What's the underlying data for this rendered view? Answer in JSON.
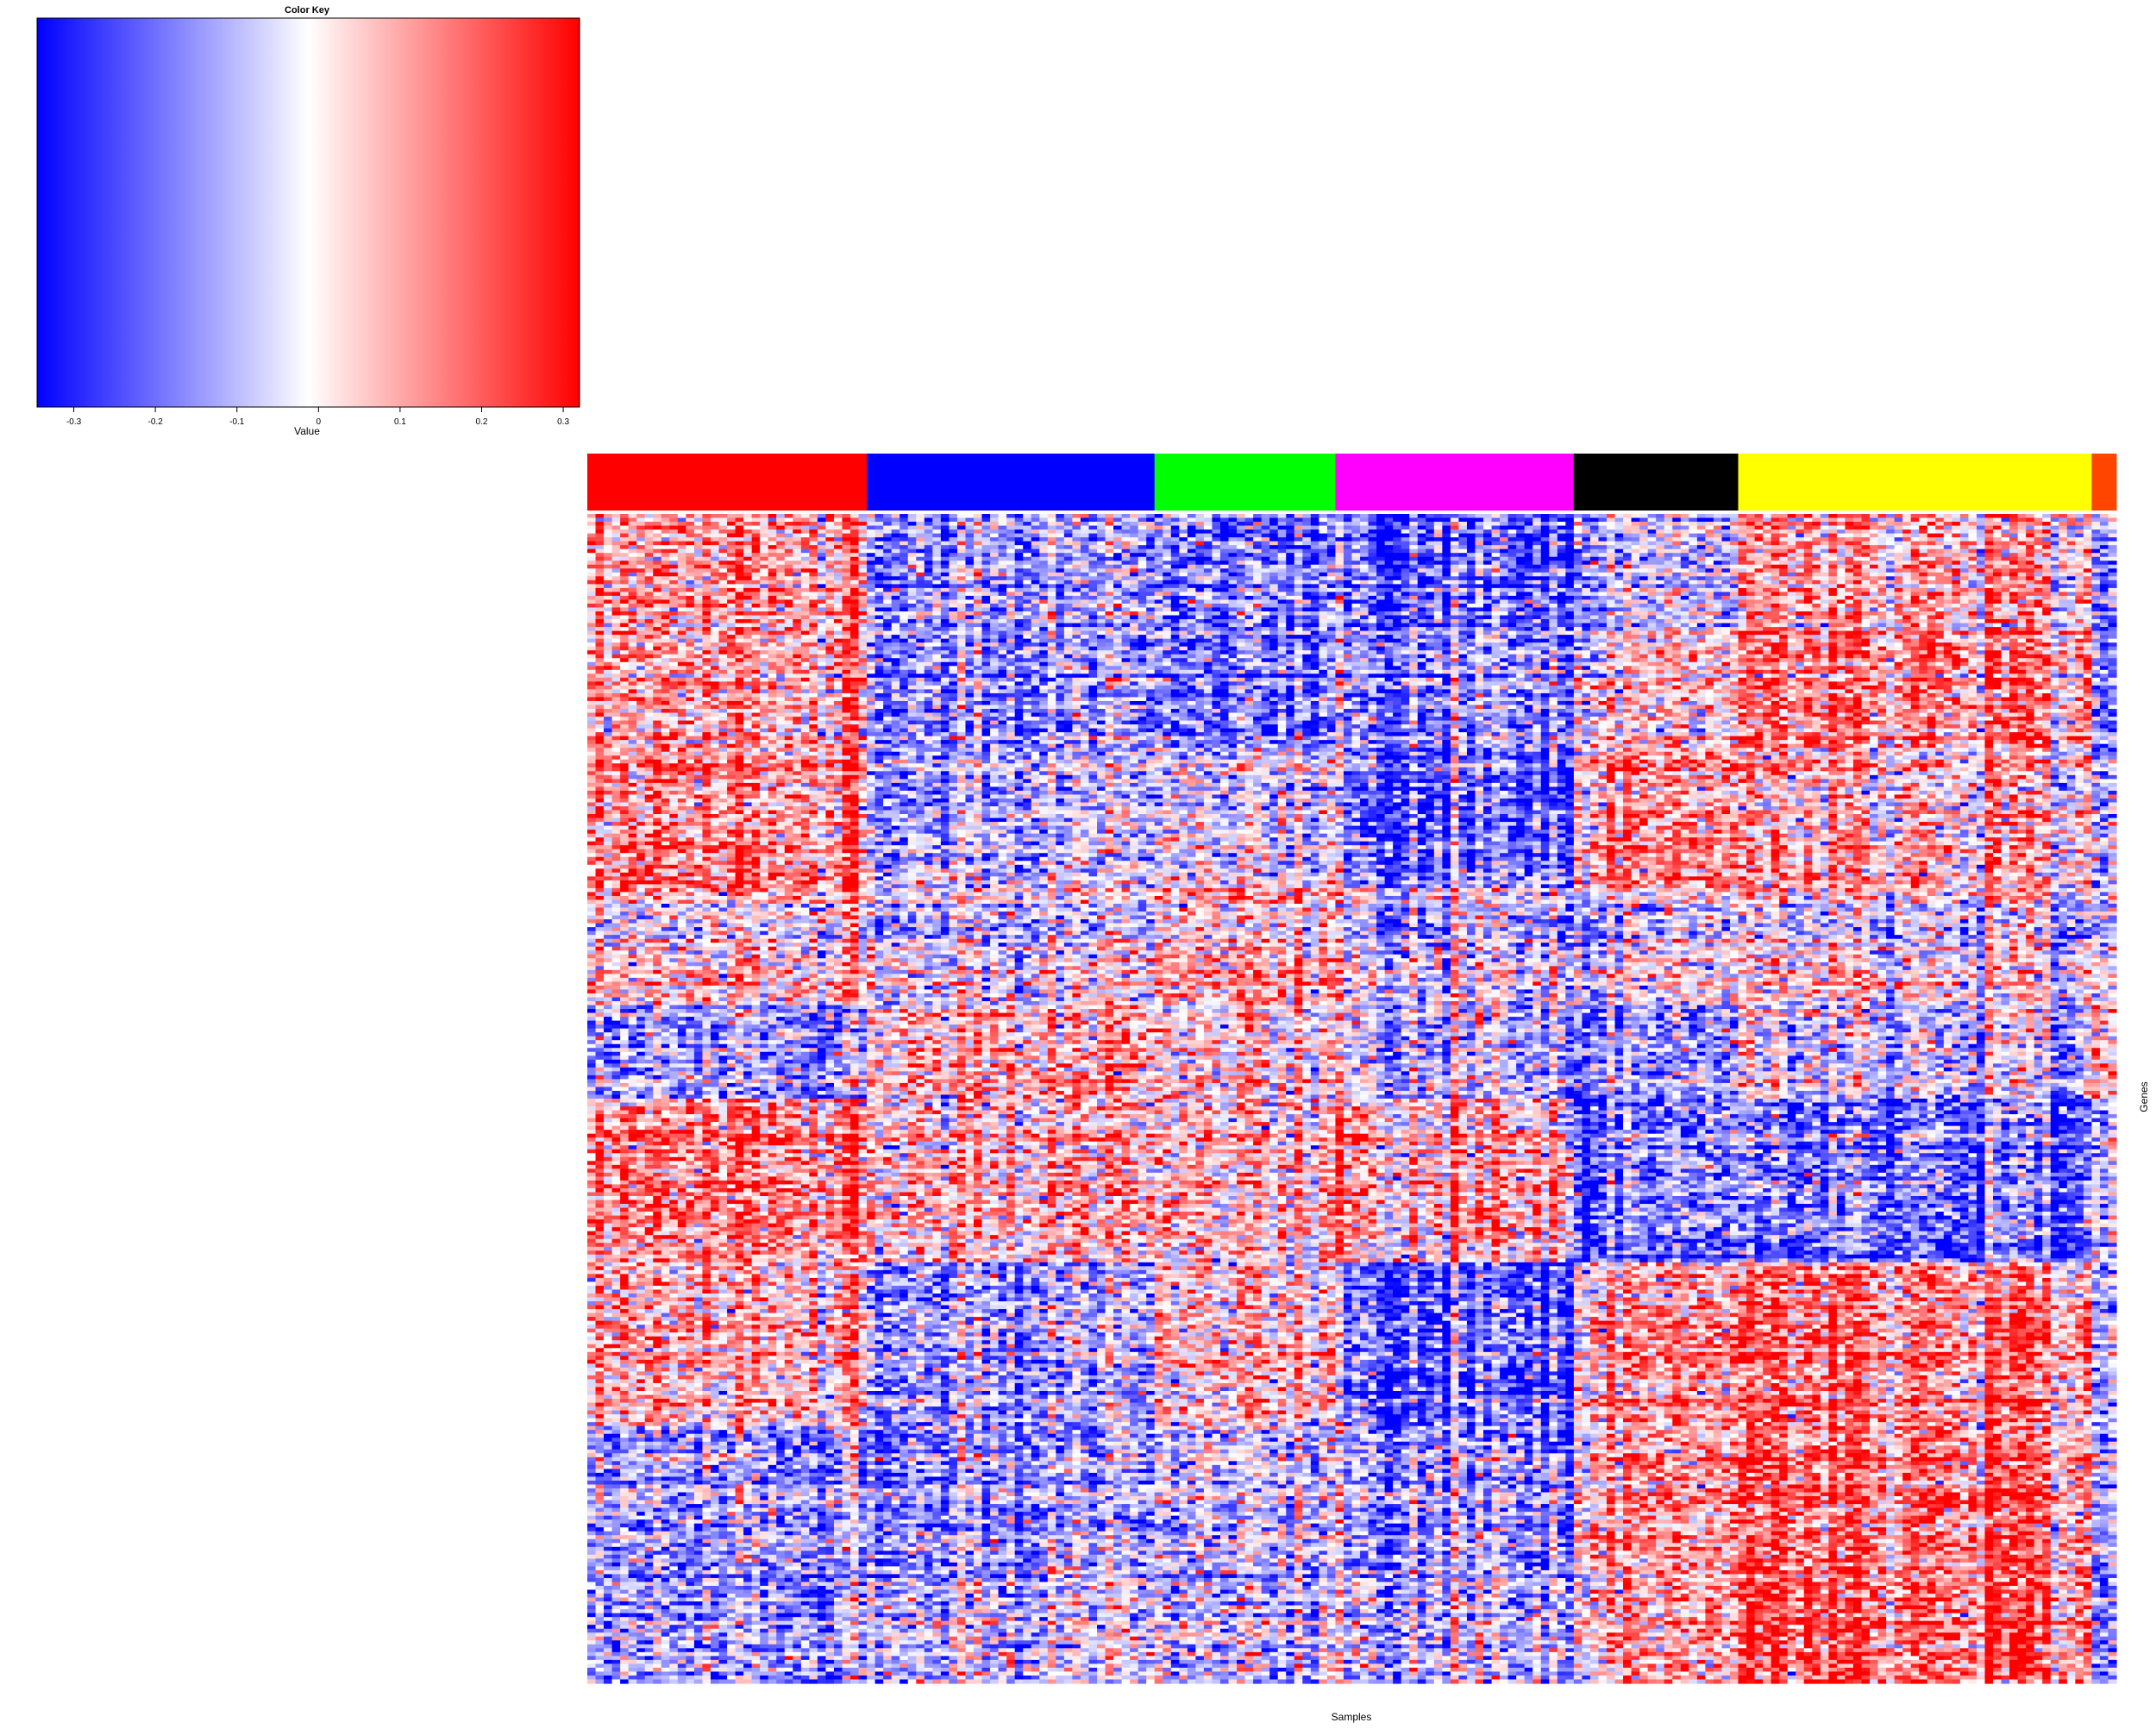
{
  "chart_data": {
    "type": "heatmap",
    "title": "",
    "xlabel": "Samples",
    "ylabel": "Genes",
    "color_key": {
      "title": "Color Key",
      "label": "Value",
      "range": [
        -0.345,
        0.32
      ],
      "ticks": [
        -0.3,
        -0.2,
        -0.1,
        0,
        0.1,
        0.2,
        0.3
      ],
      "tick_labels": [
        "-0.3",
        "-0.2",
        "-0.1",
        "0",
        "0.1",
        "0.2",
        "0.3"
      ],
      "low_color": "#0000ff",
      "mid_color": "#ffffff",
      "high_color": "#ff0000"
    },
    "sample_groups": [
      {
        "color": "#ff0000",
        "n_samples": 34
      },
      {
        "color": "#0000ff",
        "n_samples": 35
      },
      {
        "color": "#00ff00",
        "n_samples": 22
      },
      {
        "color": "#ff00ff",
        "n_samples": 29
      },
      {
        "color": "#000000",
        "n_samples": 20
      },
      {
        "color": "#ffff00",
        "n_samples": 43
      },
      {
        "color": "#ff4500",
        "n_samples": 3
      }
    ],
    "n_genes": 300,
    "gene_blocks": [
      {
        "rows": 30,
        "group_means": [
          0.12,
          -0.12,
          -0.18,
          -0.18,
          -0.08,
          0.1,
          -0.2
        ]
      },
      {
        "rows": 30,
        "group_means": [
          0.1,
          -0.15,
          -0.2,
          -0.12,
          0.02,
          0.15,
          -0.2
        ]
      },
      {
        "rows": 36,
        "group_means": [
          0.14,
          -0.1,
          -0.05,
          -0.2,
          0.1,
          0.05,
          -0.15
        ]
      },
      {
        "rows": 30,
        "group_means": [
          0.03,
          -0.05,
          0.06,
          -0.04,
          -0.05,
          -0.02,
          -0.1
        ]
      },
      {
        "rows": 24,
        "group_means": [
          -0.12,
          0.08,
          0.02,
          -0.05,
          -0.15,
          -0.05,
          0.05
        ]
      },
      {
        "rows": 42,
        "group_means": [
          0.15,
          0.05,
          0.05,
          0.1,
          -0.2,
          -0.2,
          -0.1
        ]
      },
      {
        "rows": 42,
        "group_means": [
          0.08,
          -0.12,
          0.05,
          -0.2,
          0.1,
          0.15,
          -0.15
        ]
      },
      {
        "rows": 36,
        "group_means": [
          -0.1,
          -0.12,
          -0.05,
          -0.1,
          0.12,
          0.18,
          -0.15
        ]
      },
      {
        "rows": 30,
        "group_means": [
          -0.12,
          -0.05,
          -0.08,
          -0.05,
          0.08,
          0.2,
          -0.2
        ]
      }
    ]
  }
}
